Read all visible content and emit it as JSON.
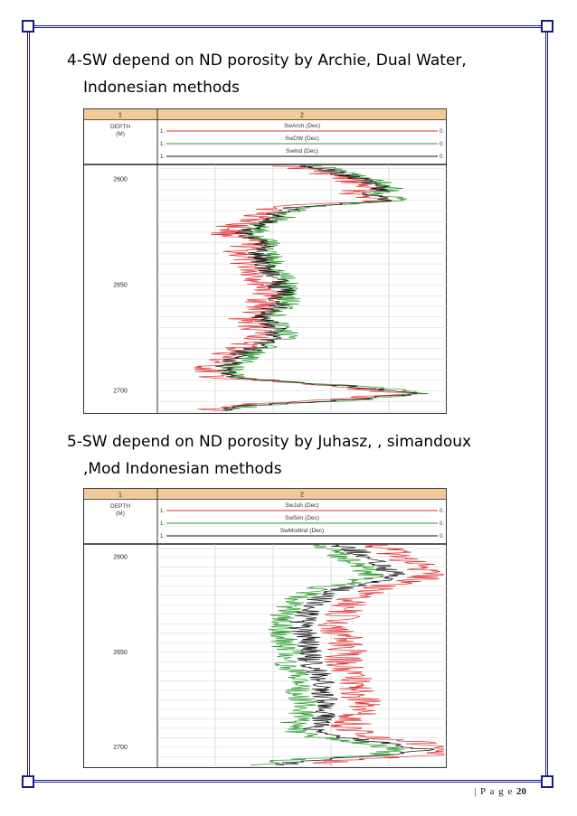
{
  "section4": {
    "line1": "4-SW depend on ND  porosity by Archie, Dual Water,",
    "line2": "Indonesian methods"
  },
  "section5": {
    "line1": "5-SW depend on ND  porosity by Juhasz, , simandoux",
    "line2": ",Mod Indonesian methods"
  },
  "footer": {
    "prefix": "| P a g e ",
    "page": "20"
  },
  "chart_data": [
    {
      "type": "line",
      "track_headers": [
        "1",
        "2"
      ],
      "depth_header": [
        "DEPTH",
        "(M)"
      ],
      "curves": [
        {
          "name": "SwArch (Dec)",
          "left": "1.",
          "right": "0.",
          "color": "#e03030"
        },
        {
          "name": "SwDW (Dec)",
          "left": "1.",
          "right": "0.",
          "color": "#2a9a2a"
        },
        {
          "name": "SwInd (Dec)",
          "left": "1.",
          "right": "0.",
          "color": "#111111"
        }
      ],
      "depth_ticks": [
        "2600",
        "2650",
        "2700"
      ],
      "depth_range": [
        2593,
        2710
      ],
      "x_range": [
        1,
        0
      ],
      "profile": [
        [
          2593,
          0.52
        ],
        [
          2596,
          0.4
        ],
        [
          2600,
          0.3
        ],
        [
          2604,
          0.22
        ],
        [
          2607,
          0.27
        ],
        [
          2610,
          0.18
        ],
        [
          2613,
          0.52
        ],
        [
          2616,
          0.58
        ],
        [
          2619,
          0.6
        ],
        [
          2622,
          0.68
        ],
        [
          2626,
          0.7
        ],
        [
          2630,
          0.62
        ],
        [
          2634,
          0.66
        ],
        [
          2638,
          0.64
        ],
        [
          2642,
          0.62
        ],
        [
          2646,
          0.6
        ],
        [
          2650,
          0.58
        ],
        [
          2654,
          0.56
        ],
        [
          2658,
          0.58
        ],
        [
          2662,
          0.6
        ],
        [
          2666,
          0.64
        ],
        [
          2670,
          0.6
        ],
        [
          2674,
          0.58
        ],
        [
          2678,
          0.64
        ],
        [
          2682,
          0.7
        ],
        [
          2686,
          0.74
        ],
        [
          2690,
          0.78
        ],
        [
          2694,
          0.74
        ],
        [
          2698,
          0.32
        ],
        [
          2701,
          0.1
        ],
        [
          2704,
          0.3
        ],
        [
          2707,
          0.7
        ],
        [
          2710,
          0.8
        ]
      ]
    },
    {
      "type": "line",
      "track_headers": [
        "1",
        "2"
      ],
      "depth_header": [
        "DEPTH",
        "(M)"
      ],
      "curves": [
        {
          "name": "SwJuh (Dec)",
          "left": "1.",
          "right": "0.",
          "color": "#e03030"
        },
        {
          "name": "SwSim (Dec)",
          "left": "1.",
          "right": "0.",
          "color": "#2a9a2a"
        },
        {
          "name": "SwModInd (Dec)",
          "left": "1.",
          "right": "0.",
          "color": "#111111"
        }
      ],
      "depth_ticks": [
        "2600",
        "2650",
        "2700"
      ],
      "depth_range": [
        2593,
        2710
      ],
      "x_range": [
        1,
        0
      ],
      "profile": [
        [
          2593,
          0.38
        ],
        [
          2596,
          0.32
        ],
        [
          2600,
          0.28
        ],
        [
          2604,
          0.22
        ],
        [
          2607,
          0.2
        ],
        [
          2610,
          0.18
        ],
        [
          2613,
          0.24
        ],
        [
          2616,
          0.36
        ],
        [
          2619,
          0.4
        ],
        [
          2622,
          0.44
        ],
        [
          2626,
          0.46
        ],
        [
          2630,
          0.48
        ],
        [
          2634,
          0.5
        ],
        [
          2638,
          0.5
        ],
        [
          2642,
          0.48
        ],
        [
          2646,
          0.48
        ],
        [
          2650,
          0.46
        ],
        [
          2654,
          0.48
        ],
        [
          2658,
          0.46
        ],
        [
          2662,
          0.44
        ],
        [
          2666,
          0.42
        ],
        [
          2670,
          0.44
        ],
        [
          2674,
          0.42
        ],
        [
          2678,
          0.4
        ],
        [
          2682,
          0.42
        ],
        [
          2686,
          0.44
        ],
        [
          2690,
          0.46
        ],
        [
          2694,
          0.4
        ],
        [
          2698,
          0.2
        ],
        [
          2701,
          0.08
        ],
        [
          2704,
          0.16
        ],
        [
          2707,
          0.5
        ],
        [
          2710,
          0.6
        ]
      ]
    }
  ]
}
